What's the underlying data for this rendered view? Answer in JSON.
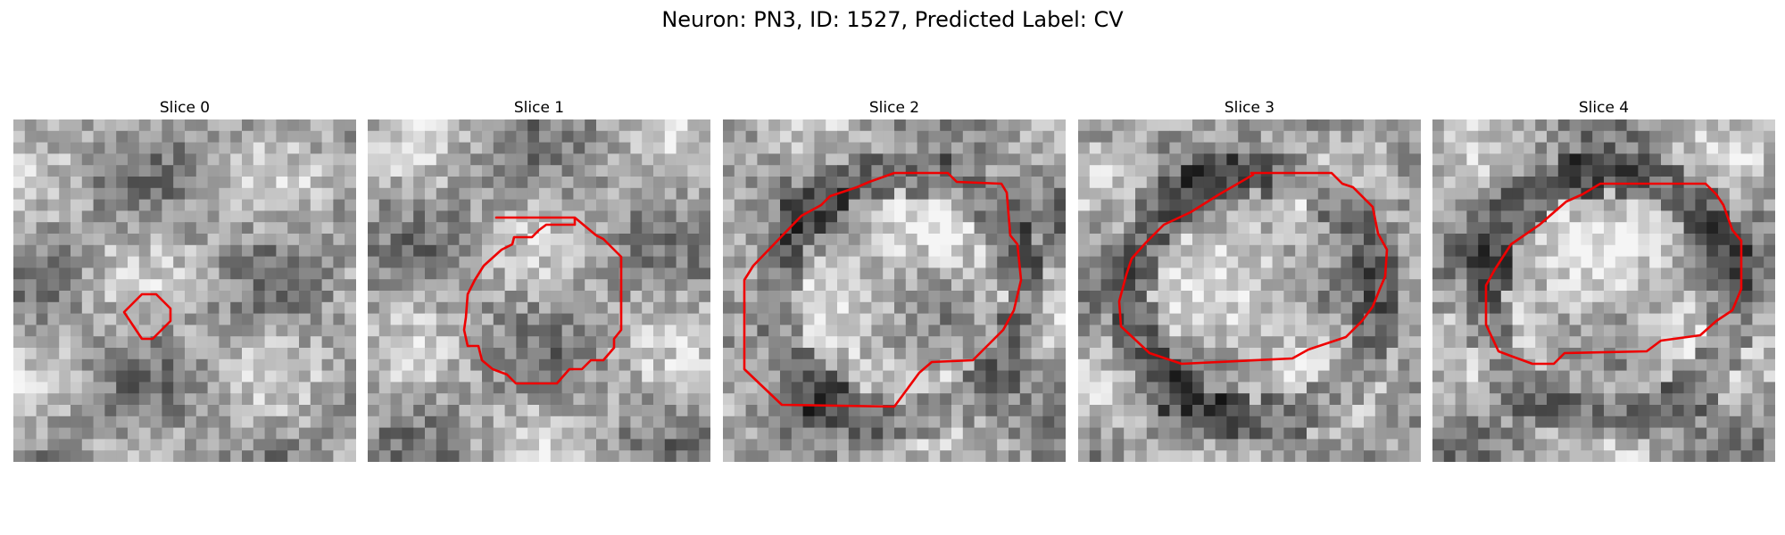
{
  "figure": {
    "title": "Neuron: PN3, ID: 1527, Predicted Label: CV"
  },
  "contour_color": "#ee0000",
  "panels": [
    {
      "title": "Slice 0"
    },
    {
      "title": "Slice 1"
    },
    {
      "title": "Slice 2"
    },
    {
      "title": "Slice 3"
    },
    {
      "title": "Slice 4"
    }
  ]
}
